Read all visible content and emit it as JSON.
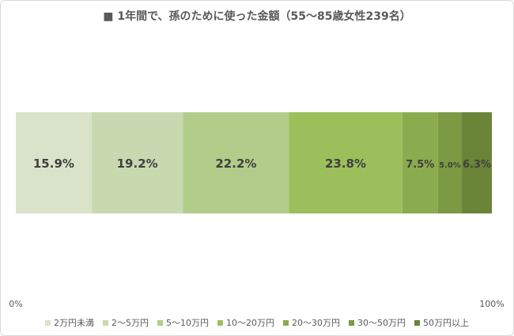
{
  "chart_data": {
    "type": "bar",
    "orientation": "horizontal",
    "stacked": "100%",
    "title": "■ 1年間で、孫のために使った金額（55～85歳女性239名）",
    "categories": [
      ""
    ],
    "series": [
      {
        "name": "2万円未満",
        "values": [
          15.9
        ],
        "label": "15.9%",
        "color": "#d9e3c9"
      },
      {
        "name": "2～5万円",
        "values": [
          19.2
        ],
        "label": "19.2%",
        "color": "#c8d9b0"
      },
      {
        "name": "5～10万円",
        "values": [
          22.2
        ],
        "label": "22.2%",
        "color": "#b2cc8a"
      },
      {
        "name": "10～20万円",
        "values": [
          23.8
        ],
        "label": "23.8%",
        "color": "#9cbf5b"
      },
      {
        "name": "20～30万円",
        "values": [
          7.5
        ],
        "label": "7.5%",
        "color": "#8aac4f"
      },
      {
        "name": "30～50万円",
        "values": [
          5.0
        ],
        "label": "5.0%",
        "color": "#7b9a43"
      },
      {
        "name": "50万円以上",
        "values": [
          6.3
        ],
        "label": "6.3%",
        "color": "#6a8438"
      }
    ],
    "xlim": [
      0,
      100
    ],
    "xticks": [
      "0%",
      "100%"
    ],
    "grid": false,
    "legend_position": "bottom",
    "label_color": "#404040"
  }
}
